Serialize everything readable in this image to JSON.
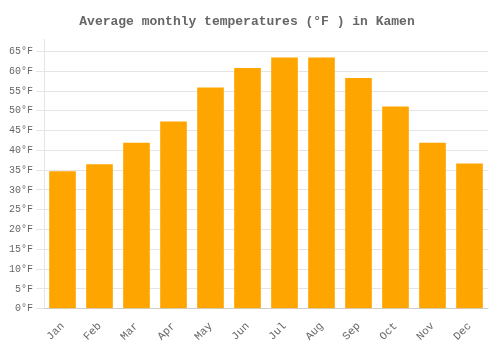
{
  "chart_data": {
    "type": "bar",
    "title": "Average monthly temperatures (°F ) in Kamen",
    "categories": [
      "Jan",
      "Feb",
      "Mar",
      "Apr",
      "May",
      "Jun",
      "Jul",
      "Aug",
      "Sep",
      "Oct",
      "Nov",
      "Dec"
    ],
    "values": [
      34.7,
      36.5,
      41.9,
      47.3,
      55.9,
      60.8,
      63.5,
      63.5,
      58.3,
      51.1,
      41.9,
      36.7
    ],
    "color": "#FFA500",
    "ylim": [
      0,
      68
    ],
    "yticks": [
      {
        "value": 0,
        "label": "0°F"
      },
      {
        "value": 5,
        "label": "5°F"
      },
      {
        "value": 10,
        "label": "10°F"
      },
      {
        "value": 15,
        "label": "15°F"
      },
      {
        "value": 20,
        "label": "20°F"
      },
      {
        "value": 25,
        "label": "25°F"
      },
      {
        "value": 30,
        "label": "30°F"
      },
      {
        "value": 35,
        "label": "35°F"
      },
      {
        "value": 40,
        "label": "40°F"
      },
      {
        "value": 45,
        "label": "45°F"
      },
      {
        "value": 50,
        "label": "50°F"
      },
      {
        "value": 55,
        "label": "55°F"
      },
      {
        "value": 60,
        "label": "60°F"
      },
      {
        "value": 65,
        "label": "65°F"
      }
    ],
    "grid": true
  }
}
